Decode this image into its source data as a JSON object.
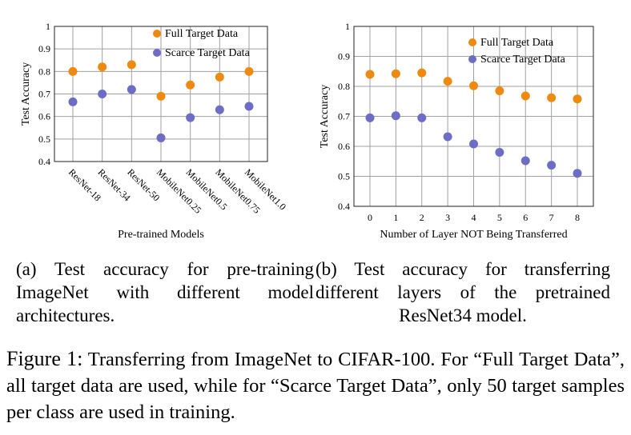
{
  "chart_data": [
    {
      "type": "scatter",
      "xlabel": "Pre-trained Models",
      "ylabel": "Test Accuracy",
      "categories": [
        "ResNet-18",
        "ResNet-34",
        "ResNet-50",
        "MobileNet0.25",
        "MobileNet0.5",
        "MobileNet0.75",
        "MobileNet1.0"
      ],
      "series": [
        {
          "name": "Full Target Data",
          "color": "#ee8a10",
          "values": [
            0.8,
            0.82,
            0.83,
            0.69,
            0.74,
            0.775,
            0.8
          ]
        },
        {
          "name": "Scarce Target Data",
          "color": "#6d6dc5",
          "values": [
            0.665,
            0.7,
            0.72,
            0.505,
            0.595,
            0.63,
            0.645
          ]
        }
      ],
      "ylim": [
        0.4,
        1.0
      ],
      "yticks": [
        "0.4",
        "0.5",
        "0.6",
        "0.7",
        "0.8",
        "0.9",
        "1"
      ],
      "grid": true,
      "legend": "top-right"
    },
    {
      "type": "scatter",
      "xlabel": "Number of Layer NOT Being Transferred",
      "ylabel": "Test Accuracy",
      "categories": [
        "0",
        "1",
        "2",
        "3",
        "4",
        "5",
        "6",
        "7",
        "8"
      ],
      "series": [
        {
          "name": "Full Target Data",
          "color": "#ee8a10",
          "values": [
            0.84,
            0.842,
            0.845,
            0.817,
            0.802,
            0.785,
            0.768,
            0.762,
            0.758
          ]
        },
        {
          "name": "Scarce Target Data",
          "color": "#6d6dc5",
          "values": [
            0.695,
            0.702,
            0.695,
            0.632,
            0.608,
            0.58,
            0.552,
            0.537,
            0.51
          ]
        }
      ],
      "ylim": [
        0.4,
        1.0
      ],
      "yticks": [
        "0.4",
        "0.5",
        "0.6",
        "0.7",
        "0.8",
        "0.9",
        "1"
      ],
      "grid": true,
      "legend": "top-right"
    }
  ],
  "captions": {
    "sub_a": "(a) Test accuracy for pre-training ImageNet with different model architectures.",
    "sub_b": "(b) Test accuracy for transferring different layers of the pretrained ResNet34 model.",
    "figure_label": "Figure 1:",
    "figure_text": "Transferring from ImageNet to CIFAR-100. For “Full Target Data”, all target data are used, while for “Scarce Target Data”, only 50 target samples per class are used in training."
  }
}
